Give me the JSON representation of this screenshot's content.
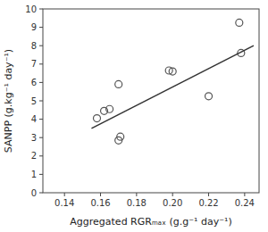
{
  "chart_data": {
    "type": "scatter",
    "xlabel": "Aggregated RGRₘₐₓ (g.g⁻¹ day⁻¹)",
    "ylabel": "SANPP (g.kg⁻¹ day⁻¹)",
    "xlim": [
      0.128,
      0.248
    ],
    "ylim": [
      0,
      10
    ],
    "xticks": [
      0.14,
      0.16,
      0.18,
      {
        "value": 0.2,
        "label": "0.20"
      },
      0.22,
      0.24
    ],
    "yticks": [
      0,
      1,
      2,
      3,
      4,
      5,
      6,
      7,
      8,
      9,
      10
    ],
    "grid": false,
    "series": [
      {
        "type": "scatter",
        "color": "#555555",
        "marker": "open-circle",
        "x": [
          0.158,
          0.162,
          0.165,
          0.17,
          0.17,
          0.171,
          0.198,
          0.2,
          0.22,
          0.237,
          0.238
        ],
        "values": [
          4.05,
          4.45,
          4.55,
          5.9,
          2.85,
          3.05,
          6.65,
          6.6,
          5.25,
          9.25,
          7.6
        ]
      },
      {
        "type": "line",
        "color": "#333333",
        "line_style": "solid",
        "x": [
          0.155,
          0.245
        ],
        "values": [
          3.5,
          8.0
        ]
      }
    ]
  }
}
